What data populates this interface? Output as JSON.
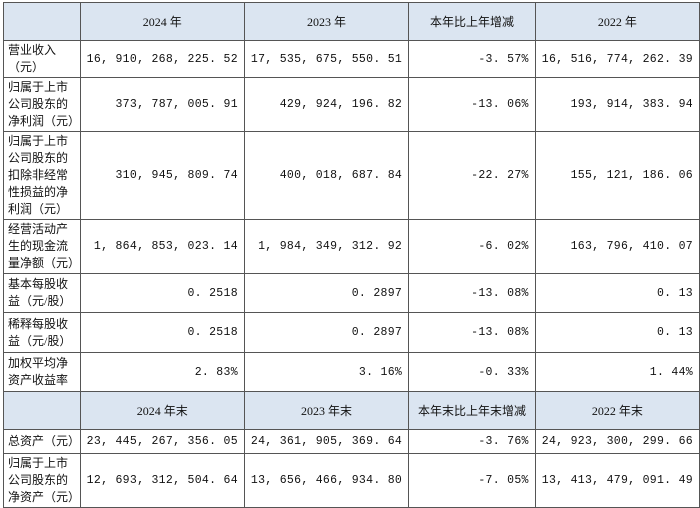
{
  "header1": [
    "",
    "2024 年",
    "2023 年",
    "本年比上年增减",
    "2022 年"
  ],
  "rows1": [
    {
      "label": "营业收入（元）",
      "values": [
        "16, 910, 268, 225. 52",
        "17, 535, 675, 550. 51",
        "-3. 57%",
        "16, 516, 774, 262. 39"
      ]
    },
    {
      "label": "归属于上市公司股东的净利润（元）",
      "values": [
        "373, 787, 005. 91",
        "429, 924, 196. 82",
        "-13. 06%",
        "193, 914, 383. 94"
      ]
    },
    {
      "label": "归属于上市公司股东的扣除非经常性损益的净利润（元）",
      "values": [
        "310, 945, 809. 74",
        "400, 018, 687. 84",
        "-22. 27%",
        "155, 121, 186. 06"
      ]
    },
    {
      "label": "经营活动产生的现金流量净额（元）",
      "values": [
        "1, 864, 853, 023. 14",
        "1, 984, 349, 312. 92",
        "-6. 02%",
        "163, 796, 410. 07"
      ]
    },
    {
      "label": "基本每股收益（元/股）",
      "values": [
        "0. 2518",
        "0. 2897",
        "-13. 08%",
        "0. 13"
      ]
    },
    {
      "label": "稀释每股收益（元/股）",
      "values": [
        "0. 2518",
        "0. 2897",
        "-13. 08%",
        "0. 13"
      ]
    },
    {
      "label": "加权平均净资产收益率",
      "values": [
        "2. 83%",
        "3. 16%",
        "-0. 33%",
        "1. 44%"
      ]
    }
  ],
  "header2": [
    "",
    "2024 年末",
    "2023 年末",
    "本年末比上年末增减",
    "2022 年末"
  ],
  "rows2": [
    {
      "label": "总资产（元）",
      "values": [
        "23, 445, 267, 356. 05",
        "24, 361, 905, 369. 64",
        "-3. 76%",
        "24, 923, 300, 299. 66"
      ]
    },
    {
      "label": "归属于上市公司股东的净资产（元）",
      "values": [
        "12, 693, 312, 504. 64",
        "13, 656, 466, 934. 80",
        "-7. 05%",
        "13, 413, 479, 091. 49"
      ]
    }
  ]
}
